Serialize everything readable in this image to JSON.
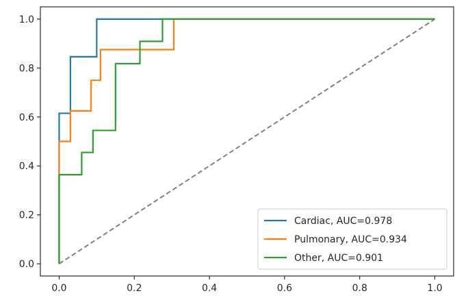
{
  "chart_data": {
    "type": "line",
    "title": "",
    "xlabel": "",
    "ylabel": "",
    "xlim": [
      -0.05,
      1.05
    ],
    "ylim": [
      -0.05,
      1.05
    ],
    "grid": false,
    "legend_position": "lower-right",
    "xticks": [
      0.0,
      0.2,
      0.4,
      0.6,
      0.8,
      1.0
    ],
    "yticks": [
      0.0,
      0.2,
      0.4,
      0.6,
      0.8,
      1.0
    ],
    "xtick_labels": [
      "0.0",
      "0.2",
      "0.4",
      "0.6",
      "0.8",
      "1.0"
    ],
    "ytick_labels": [
      "0.0",
      "0.2",
      "0.4",
      "0.6",
      "0.8",
      "1.0"
    ],
    "series": [
      {
        "name": "Cardiac, AUC=0.978",
        "color": "#1f77b4",
        "x": [
          0,
          0,
          0,
          0.03,
          0.03,
          0.1,
          0.1,
          1.0
        ],
        "y": [
          0,
          0.5,
          0.615,
          0.615,
          0.846,
          0.846,
          1.0,
          1.0
        ]
      },
      {
        "name": "Pulmonary, AUC=0.934",
        "color": "#ff7f0e",
        "x": [
          0,
          0,
          0,
          0.03,
          0.03,
          0.085,
          0.085,
          0.11,
          0.11,
          0.305,
          0.305,
          1.0
        ],
        "y": [
          0,
          0.375,
          0.5,
          0.5,
          0.625,
          0.625,
          0.75,
          0.75,
          0.875,
          0.875,
          1.0,
          1.0
        ]
      },
      {
        "name": "Other, AUC=0.901",
        "color": "#2ca02c",
        "x": [
          0,
          0,
          0.06,
          0.06,
          0.09,
          0.09,
          0.15,
          0.15,
          0.215,
          0.215,
          0.275,
          0.275,
          1.0
        ],
        "y": [
          0,
          0.364,
          0.364,
          0.455,
          0.455,
          0.545,
          0.545,
          0.818,
          0.818,
          0.909,
          0.909,
          1.0,
          1.0
        ]
      }
    ],
    "reference_line": {
      "x": [
        0,
        1
      ],
      "y": [
        0,
        1
      ],
      "color": "#808080",
      "style": "dashed"
    }
  }
}
